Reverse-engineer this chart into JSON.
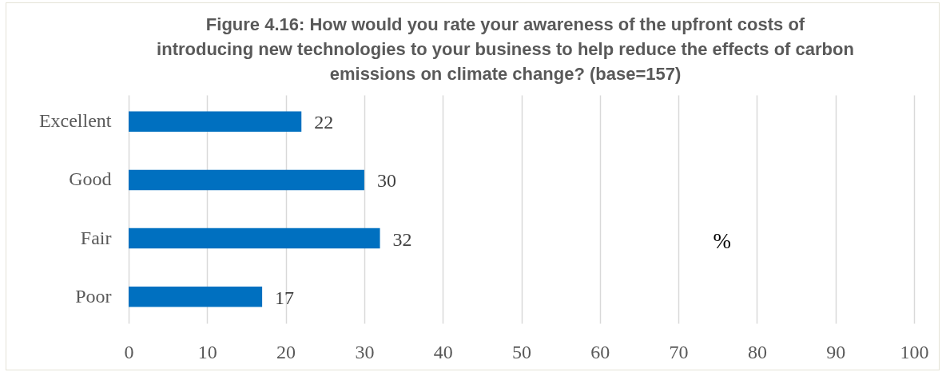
{
  "chart_data": {
    "type": "bar",
    "orientation": "horizontal",
    "title": "Figure 4.16: How would you rate your awareness of the upfront costs of introducing new technologies to your business to help reduce the effects of carbon emissions on climate change? (base=157)",
    "xlabel": "%",
    "categories": [
      "Excellent",
      "Good",
      "Fair",
      "Poor"
    ],
    "values": [
      22,
      30,
      32,
      17
    ],
    "color": "#0070c0",
    "xlim": [
      0,
      100
    ],
    "xticks": [
      0,
      10,
      20,
      30,
      40,
      50,
      60,
      70,
      80,
      90,
      100
    ],
    "grid": "x",
    "data_labels": true
  }
}
